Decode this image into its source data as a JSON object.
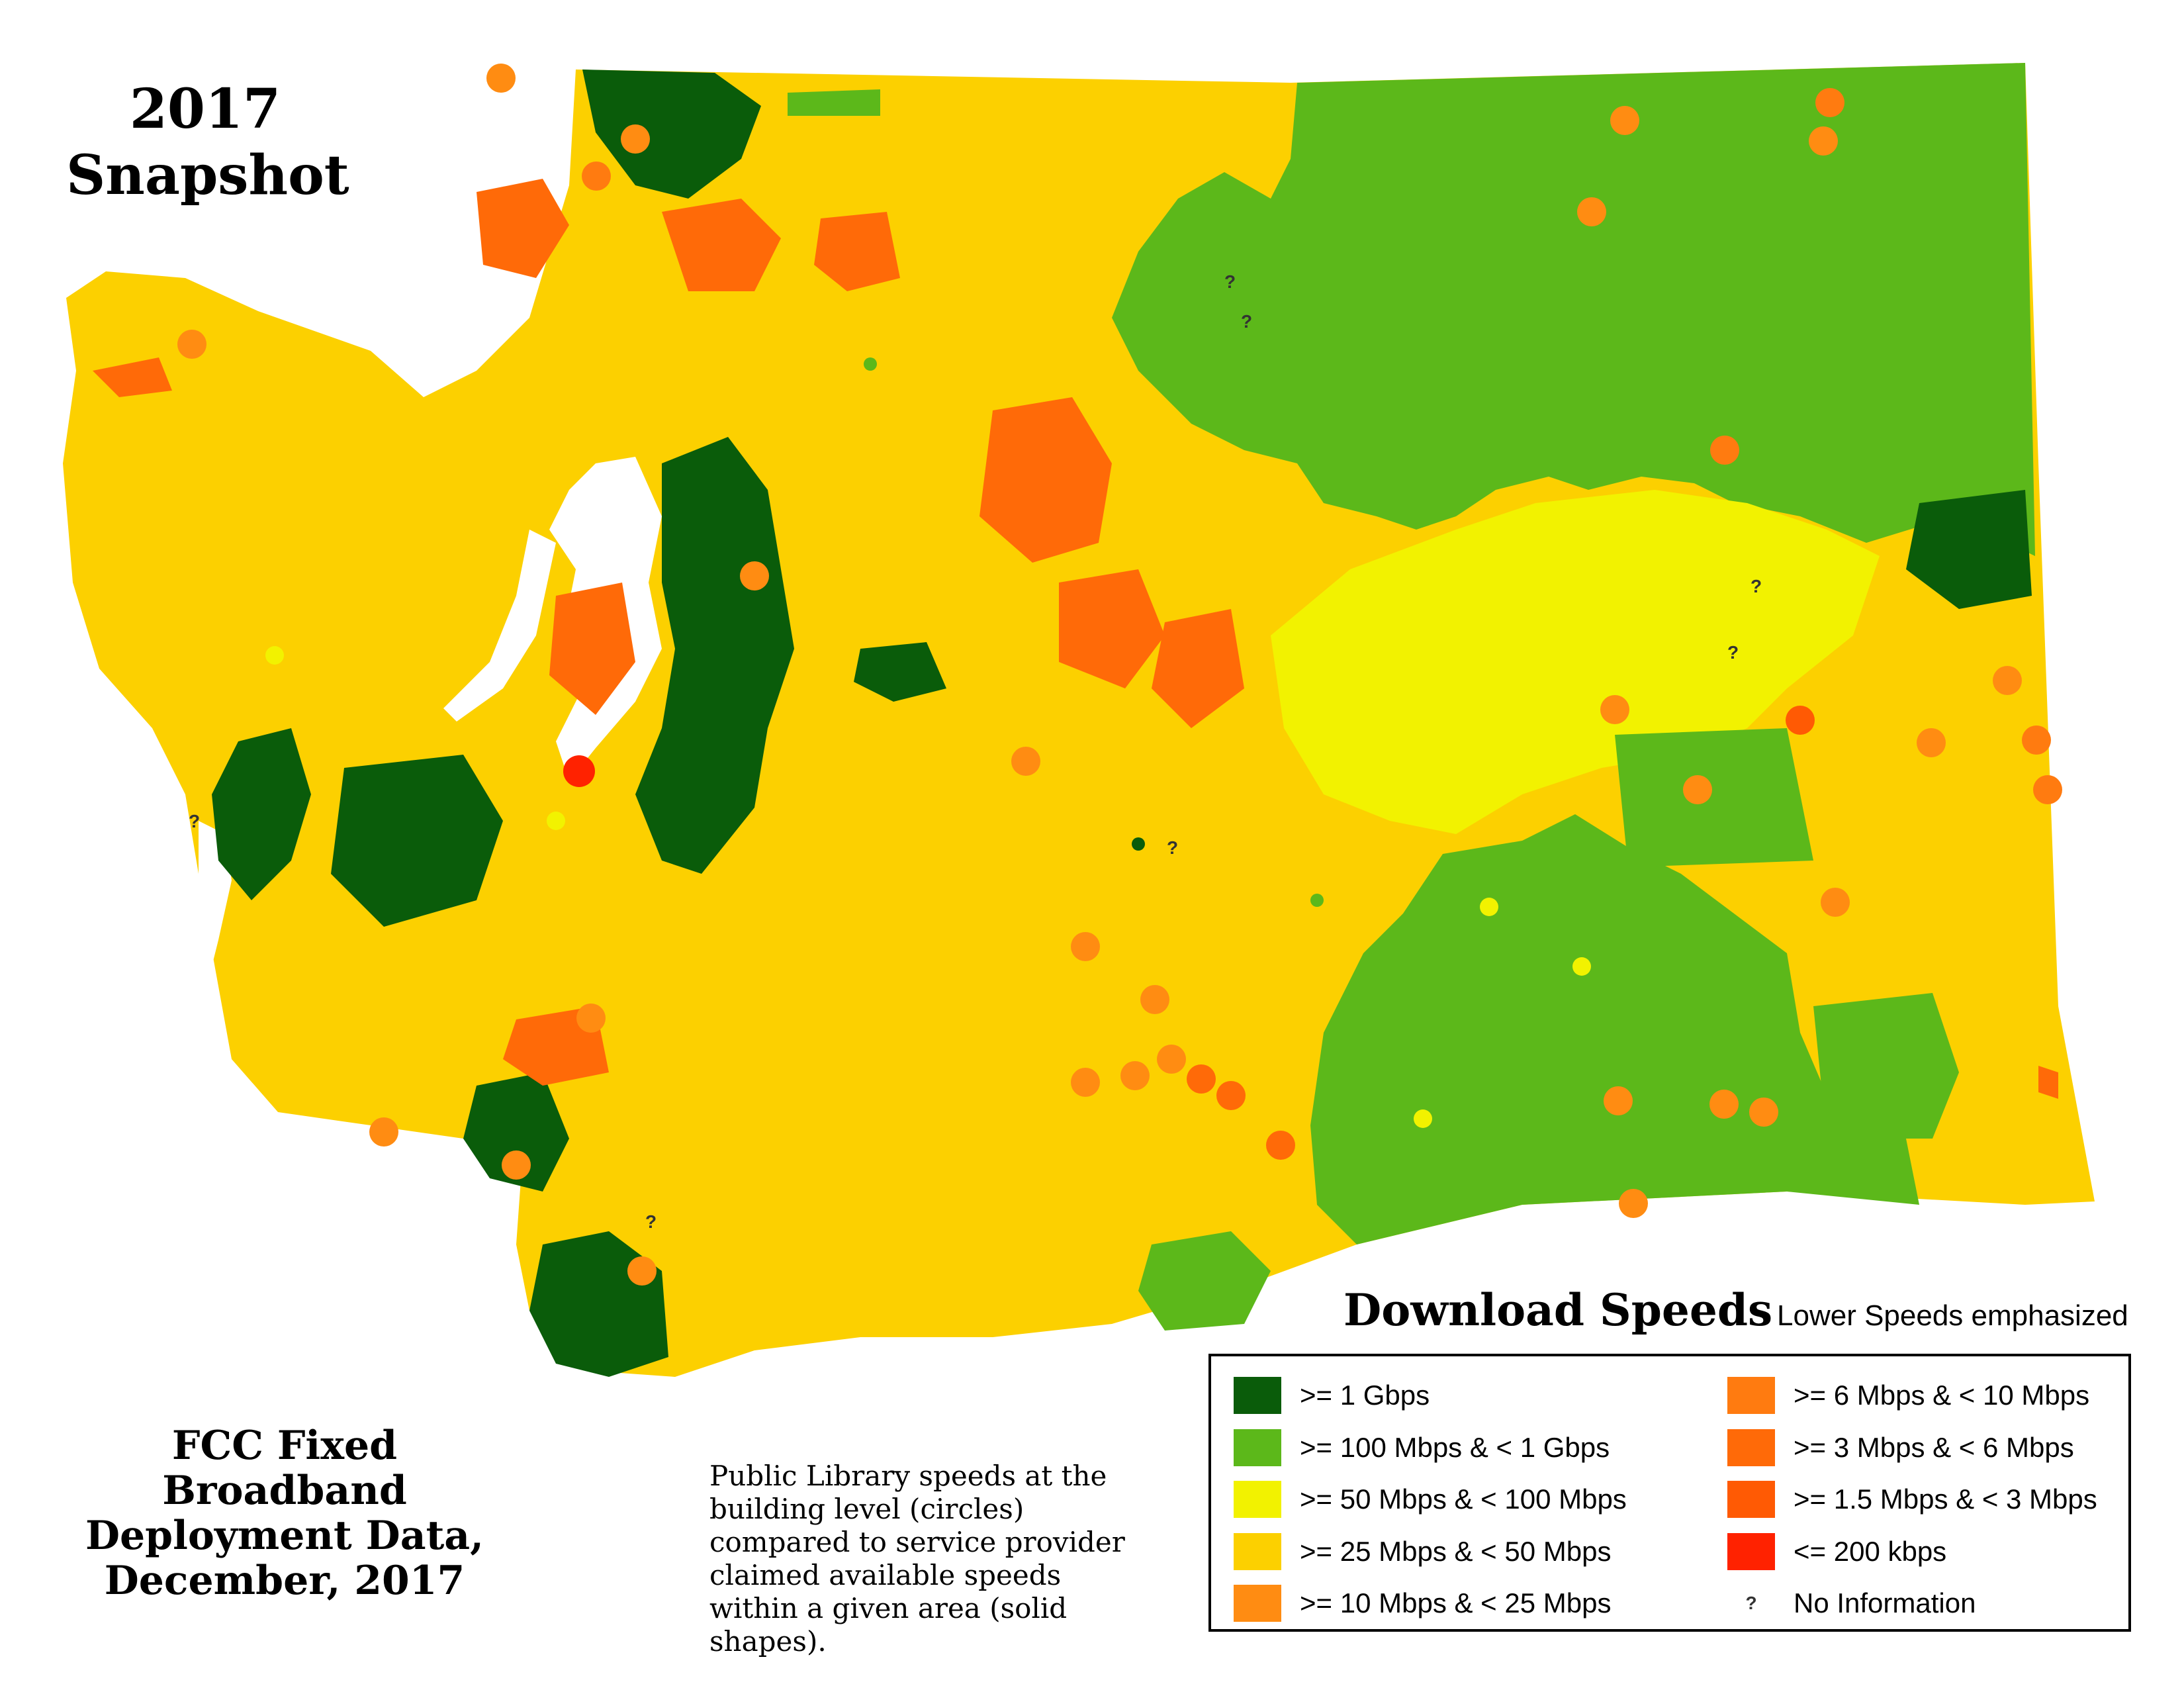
{
  "title": {
    "line1": "2017",
    "line2": "Snapshot"
  },
  "source_title": {
    "line1": "FCC Fixed Broadband",
    "line2": "Deployment Data,",
    "line3": "December, 2017"
  },
  "note": {
    "line1": "Public Library speeds at the",
    "line2": "building level (circles)",
    "line3": "compared to service provider",
    "line4": "claimed available speeds",
    "line5": "within a given area (solid shapes)."
  },
  "legend": {
    "heading": "Download Speeds",
    "subheading": "Lower Speeds emphasized",
    "items_left": [
      {
        "label": ">= 1 Gbps",
        "color": "#0a5c0a",
        "icon": "swatch"
      },
      {
        "label": ">= 100 Mbps & < 1 Gbps",
        "color": "#5cb81a",
        "icon": "swatch"
      },
      {
        "label": ">= 50 Mbps & < 100 Mbps",
        "color": "#f2f200",
        "icon": "swatch"
      },
      {
        "label": ">= 25 Mbps & < 50 Mbps",
        "color": "#fcd000",
        "icon": "swatch"
      },
      {
        "label": ">= 10 Mbps & < 25 Mbps",
        "color": "#ff8c12",
        "icon": "swatch"
      }
    ],
    "items_right": [
      {
        "label": ">= 6 Mbps & < 10 Mbps",
        "color": "#ff7b10",
        "icon": "swatch"
      },
      {
        "label": ">= 3 Mbps & < 6 Mbps",
        "color": "#ff6a08",
        "icon": "swatch"
      },
      {
        "label": ">= 1.5 Mbps & < 3 Mbps",
        "color": "#ff5a04",
        "icon": "swatch"
      },
      {
        "label": "<= 200 kbps",
        "color": "#ff2200",
        "icon": "swatch"
      },
      {
        "label": "No Information",
        "color": "#333333",
        "icon": "question-mark-icon",
        "symbol": "?"
      }
    ]
  },
  "colors": {
    "gbps": "#0a5c0a",
    "mbps100": "#5cb81a",
    "mbps50": "#f2f200",
    "mbps25": "#fcd000",
    "mbps10": "#ff8c12",
    "mbps3": "#ff6a08",
    "kbps200": "#ff2200",
    "water": "#ffffff"
  }
}
